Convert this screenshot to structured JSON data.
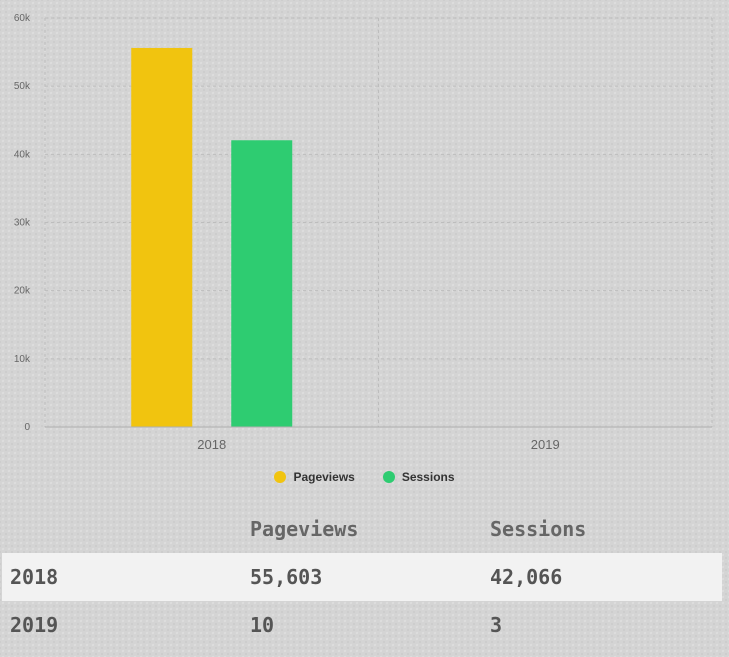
{
  "chart_data": {
    "type": "bar",
    "categories": [
      "2018",
      "2019"
    ],
    "series": [
      {
        "name": "Pageviews",
        "values": [
          55603,
          10
        ],
        "color": "#f1c40f"
      },
      {
        "name": "Sessions",
        "values": [
          42066,
          3
        ],
        "color": "#2ecc71"
      }
    ],
    "ylim": [
      0,
      60000
    ],
    "yticks": [
      0,
      10000,
      20000,
      30000,
      40000,
      50000,
      60000
    ],
    "ytick_labels": [
      "0",
      "10k",
      "20k",
      "30k",
      "40k",
      "50k",
      "60k"
    ],
    "grid": true,
    "legend_position": "bottom-center"
  },
  "table": {
    "headers": [
      "",
      "Pageviews",
      "Sessions"
    ],
    "rows": [
      [
        "2018",
        "55,603",
        "42,066"
      ],
      [
        "2019",
        "10",
        "3"
      ]
    ]
  }
}
